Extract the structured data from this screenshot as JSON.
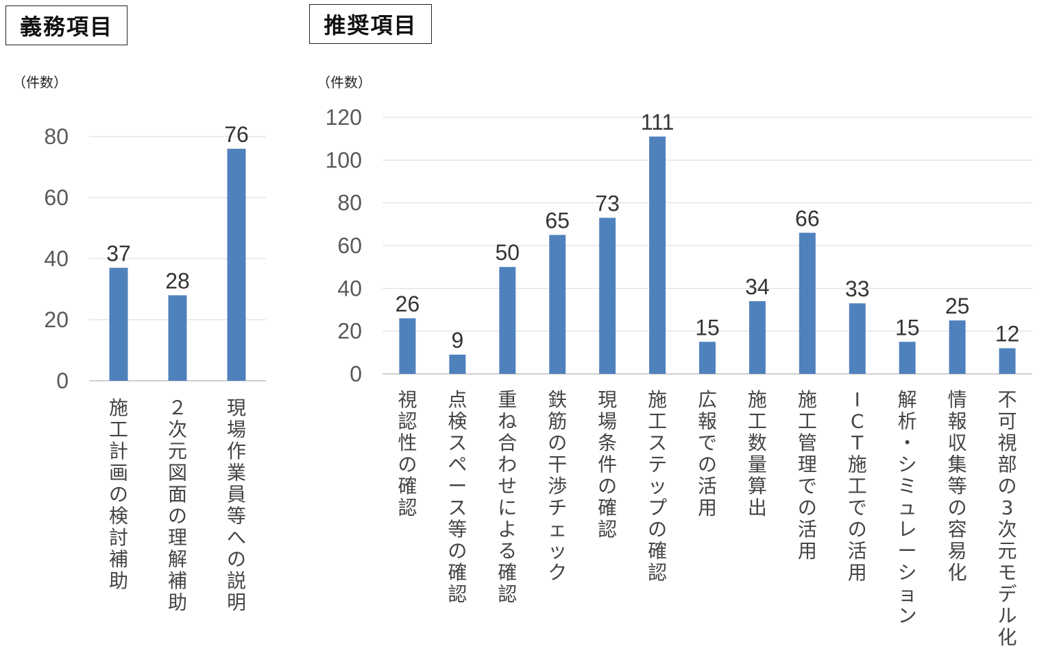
{
  "sections": {
    "mandatory_title": "義務項目",
    "recommended_title": "推奨項目"
  },
  "unit_label": "（件数）",
  "colors": {
    "bar": "#4f81bd",
    "grid": "#d9d9d9",
    "axis": "#bfbfbf"
  },
  "chart_data": [
    {
      "type": "bar",
      "title": "義務項目",
      "ylabel": "（件数）",
      "ylim": [
        0,
        80
      ],
      "yticks": [
        0,
        20,
        40,
        60,
        80
      ],
      "grid": true,
      "categories": [
        "施工計画の検討補助",
        "２次元図面の理解補助",
        "現場作業員等への説明"
      ],
      "values": [
        37,
        28,
        76
      ]
    },
    {
      "type": "bar",
      "title": "推奨項目",
      "ylabel": "（件数）",
      "ylim": [
        0,
        120
      ],
      "yticks": [
        0,
        20,
        40,
        60,
        80,
        100,
        120
      ],
      "grid": true,
      "categories": [
        "視認性の確認",
        "点検スペース等の確認",
        "重ね合わせによる確認",
        "鉄筋の干渉チェック",
        "現場条件の確認",
        "施工ステップの確認",
        "広報での活用",
        "施工数量算出",
        "施工管理での活用",
        "ICT施工での活用",
        "解析・シミュレーション",
        "情報収集等の容易化",
        "不可視部の3次元モデル化"
      ],
      "values": [
        26,
        9,
        50,
        65,
        73,
        111,
        15,
        34,
        66,
        33,
        15,
        25,
        12
      ]
    }
  ]
}
